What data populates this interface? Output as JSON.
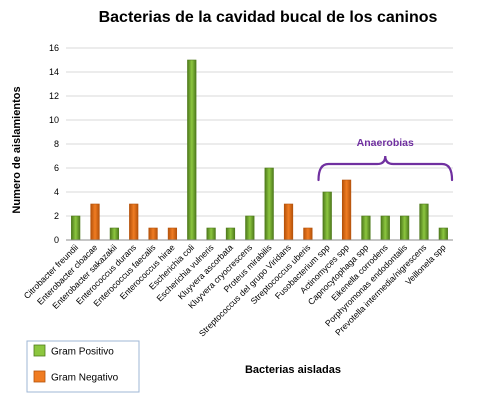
{
  "chart_data": {
    "type": "bar",
    "title": "Bacterias de la cavidad bucal de los caninos",
    "xlabel": "Bacterias aisladas",
    "ylabel": "Numero de aislamientos",
    "ylim": [
      0,
      16
    ],
    "yticks": [
      0,
      2,
      4,
      6,
      8,
      10,
      12,
      14,
      16
    ],
    "grid": true,
    "legend_position": "bottom-left",
    "categories": [
      "Citrobacter freundii",
      "Enterobacter cloacae",
      "Enterobacter sakazakii",
      "Enterococcus durans",
      "Enterococcus faecalis",
      "Enterococcus hirae",
      "Escherichia coli",
      "Escherichia vulneris",
      "Kluyvera ascorbata",
      "Kluyvera cryocrescens",
      "Proteus mirabilis",
      "Streptococcus del grupo Viridans",
      "Streptococcus uberis",
      "Fusobacterium spp",
      "Actinomyces spp",
      "Capnocytophaga spp",
      "Eikenella corrodens",
      "Porphyromonas endodontalis",
      "Prevotella intermedia/nigrescens",
      "Veillonela spp"
    ],
    "values": [
      2,
      3,
      1,
      3,
      1,
      1,
      15,
      1,
      1,
      2,
      6,
      3,
      1,
      4,
      5,
      2,
      2,
      2,
      3,
      1
    ],
    "gram": [
      "pos",
      "neg",
      "pos",
      "neg",
      "neg",
      "neg",
      "pos",
      "pos",
      "pos",
      "pos",
      "pos",
      "neg",
      "neg",
      "pos",
      "neg",
      "pos",
      "pos",
      "pos",
      "pos",
      "pos"
    ],
    "series": [
      {
        "key": "pos",
        "name": "Gram Positivo",
        "color": "#8cc63f",
        "dark": "#4e7a1c"
      },
      {
        "key": "neg",
        "name": "Gram Negativo",
        "color": "#f07c22",
        "dark": "#b5520a"
      }
    ],
    "annotations": [
      {
        "text": "Anaerobias",
        "color": "#7030a0",
        "from_category": 13,
        "to_category": 19
      }
    ]
  }
}
